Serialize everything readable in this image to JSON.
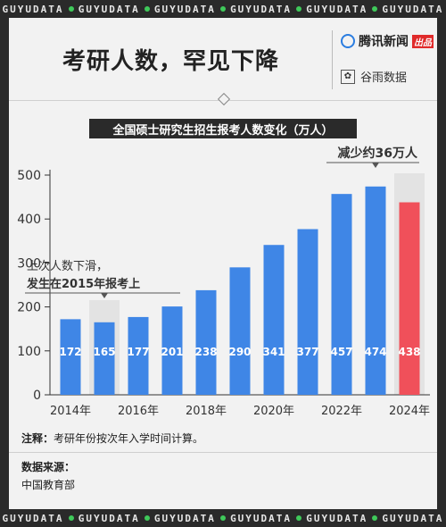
{
  "brand_ticker": [
    "GUYUDATA",
    "GUYUDATA",
    "GUYUDATA",
    "GUYUDATA",
    "GUYUDATA",
    "GUYUDATA"
  ],
  "headline": "考研人数，罕见下降",
  "logos": {
    "tencent": "腾讯新闻",
    "tencent_badge": "出品",
    "guyu": "谷雨数据"
  },
  "colors": {
    "bar_blue": "#3f86e6",
    "bar_red": "#f0505a",
    "highlight": "#e3e3e3",
    "ticker_dot": "#3fc95a"
  },
  "chart_data": {
    "type": "bar",
    "title": "全国硕士研究生招生报考人数变化（万人）",
    "categories": [
      "2014",
      "2015",
      "2016",
      "2017",
      "2018",
      "2019",
      "2020",
      "2021",
      "2022",
      "2023",
      "2024"
    ],
    "values": [
      172,
      165,
      177,
      201,
      238,
      290,
      341,
      377,
      457,
      474,
      438
    ],
    "value_labels": [
      "172",
      "165",
      "177",
      "201",
      "238",
      "290",
      "341",
      "377",
      "457",
      "474",
      "438"
    ],
    "x_tick_labels": [
      "2014年",
      "2016年",
      "2018年",
      "2020年",
      "2022年",
      "2024年"
    ],
    "y_ticks": [
      0,
      100,
      200,
      300,
      400,
      500
    ],
    "ylim": [
      0,
      500
    ],
    "highlight_categories": [
      "2015",
      "2024"
    ],
    "annotations": [
      {
        "lines": [
          "上次人数下滑，",
          "发生在2015年报考上"
        ],
        "category": "2015"
      },
      {
        "lines": [
          "减少约36万人"
        ],
        "category": "2024"
      }
    ]
  },
  "footnote": {
    "label": "注释：",
    "text": "考研年份按次年入学时间计算。"
  },
  "source": {
    "label": "数据来源：",
    "value": "中国教育部"
  }
}
